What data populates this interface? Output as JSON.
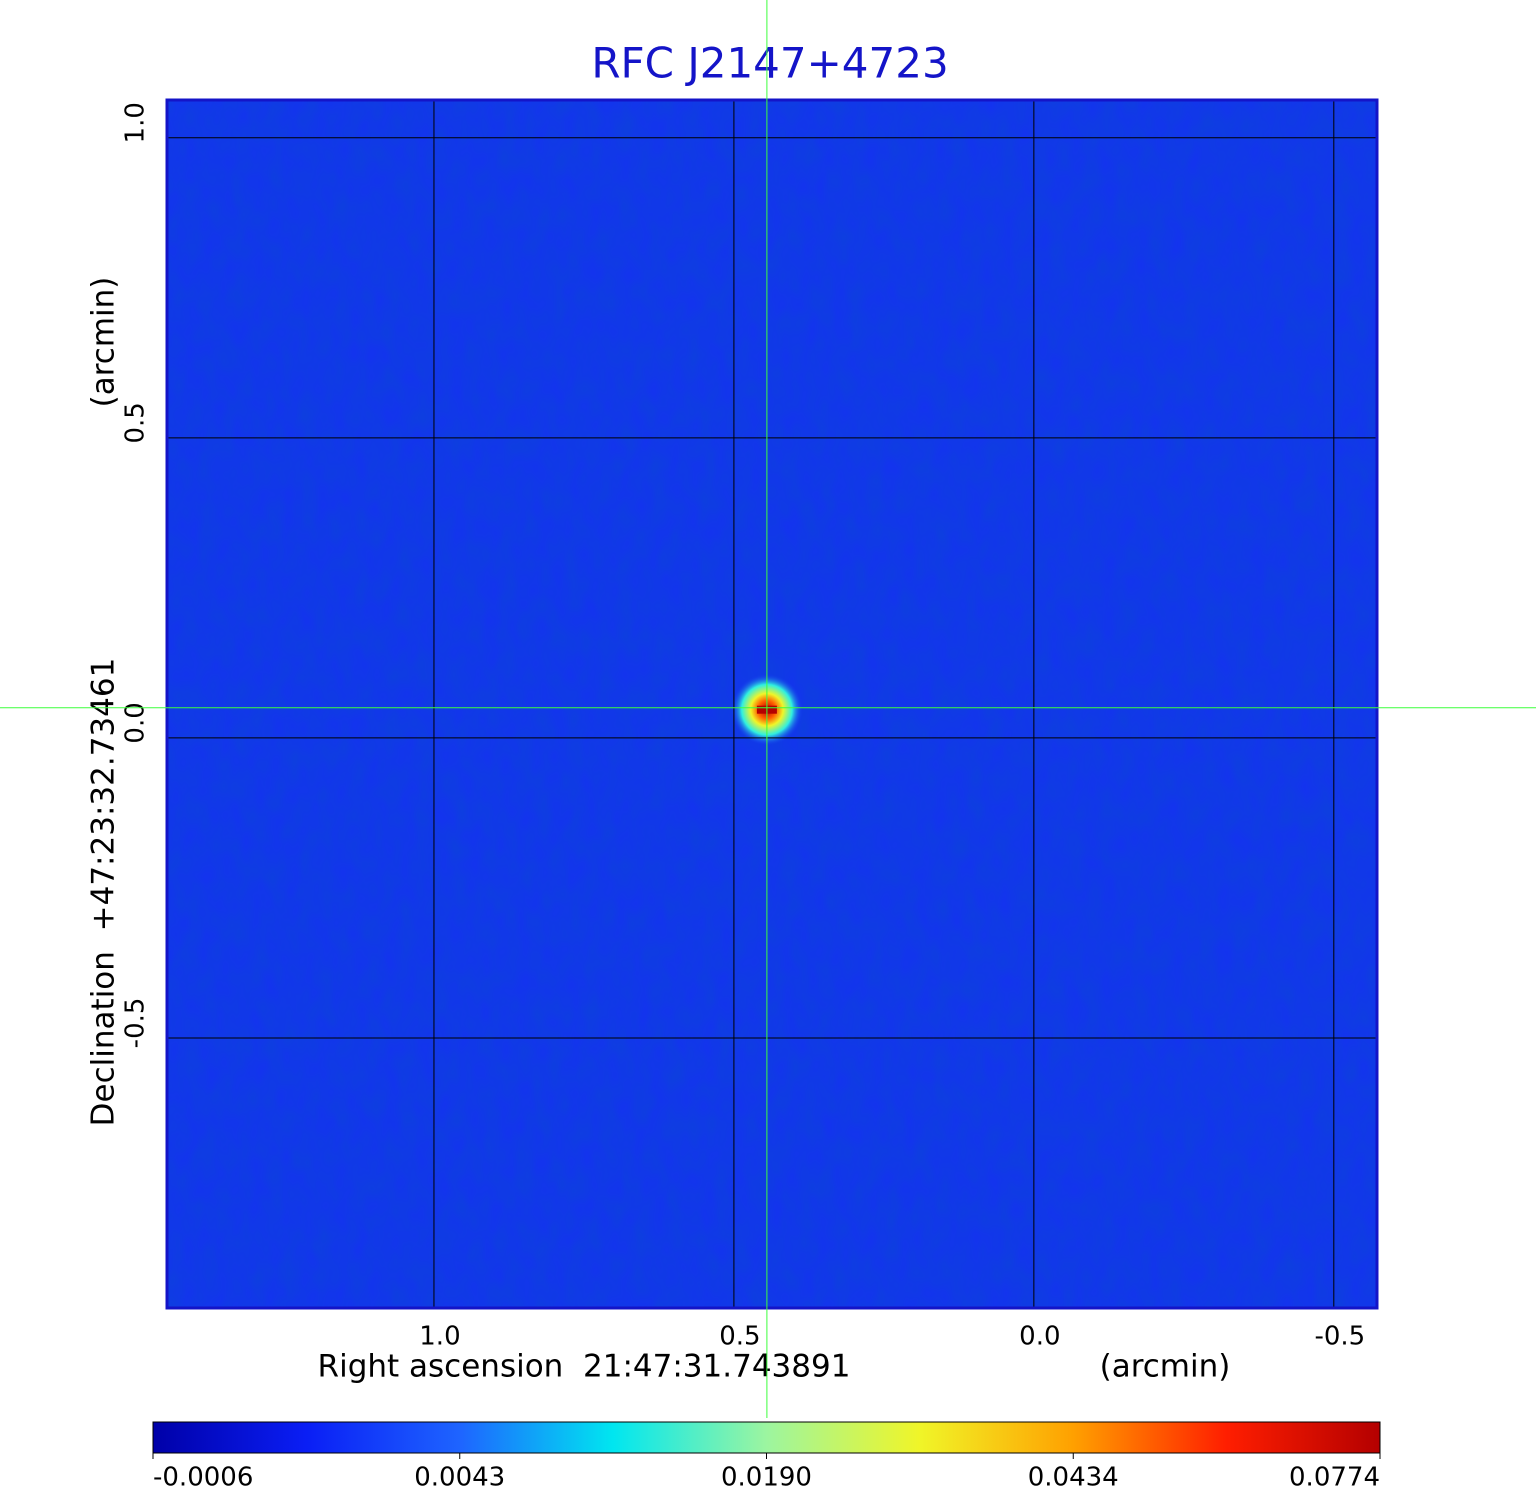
{
  "chart_data": {
    "type": "image",
    "title": "RFC J2147+4723",
    "x_label": "Right ascension  21:47:31.743891",
    "x_unit": "(arcmin)",
    "y_label": "Declination  +47:23:32.73461",
    "y_unit": "(arcmin)",
    "xlim": [
      1.445,
      -0.572
    ],
    "ylim": [
      -0.95,
      1.063
    ],
    "xticks": [
      {
        "value": 1,
        "label": "1.0"
      },
      0.5,
      {
        "value": 0,
        "label": "0.0"
      },
      -0.5
    ],
    "yticks": [
      -0.5,
      {
        "value": 0,
        "label": "0.0"
      },
      0.5,
      {
        "value": 1,
        "label": "1.0"
      }
    ],
    "grid": true,
    "background_color": "#1432f0",
    "crosshair_color": "#3cff3c",
    "source": {
      "x": 0.445,
      "y": 0.047,
      "value": 0.0774
    },
    "colorbar": {
      "ticks": [
        -0.0006,
        0.0043,
        {
          "value": 0.019,
          "label": "0.0190"
        },
        0.0434,
        0.0774
      ],
      "colormap": [
        "#0000a8",
        "#0a1ef5",
        "#1e64ff",
        "#00e6f0",
        "#9cf5a0",
        "#f0f528",
        "#ffa000",
        "#ff1e00",
        "#b40000"
      ]
    }
  }
}
